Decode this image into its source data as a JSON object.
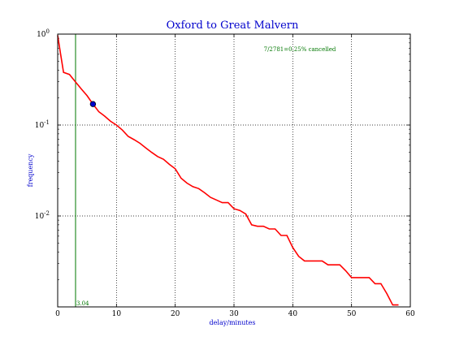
{
  "chart_data": {
    "type": "line",
    "title": "Oxford to Great Malvern",
    "xlabel": "delay/minutes",
    "ylabel": "frequency",
    "xlim": [
      0,
      60
    ],
    "ylim": [
      0.001,
      1.0
    ],
    "yscale": "log",
    "grid": true,
    "x_ticks": [
      "0",
      "10",
      "20",
      "30",
      "40",
      "50",
      "60"
    ],
    "y_ticks": [
      {
        "base": "10",
        "exp": "-2",
        "value": 0.01
      },
      {
        "base": "10",
        "exp": "-1",
        "value": 0.1
      },
      {
        "base": "10",
        "exp": "0",
        "value": 1.0
      }
    ],
    "series": [
      {
        "color": "#ff0000",
        "points": [
          [
            0,
            0.97
          ],
          [
            0.5,
            0.6
          ],
          [
            1,
            0.38
          ],
          [
            2,
            0.36
          ],
          [
            3,
            0.3
          ],
          [
            4,
            0.25
          ],
          [
            5,
            0.21
          ],
          [
            6,
            0.17
          ],
          [
            7,
            0.14
          ],
          [
            8,
            0.125
          ],
          [
            9,
            0.11
          ],
          [
            10,
            0.1
          ],
          [
            11,
            0.088
          ],
          [
            12,
            0.075
          ],
          [
            13,
            0.069
          ],
          [
            14,
            0.063
          ],
          [
            15,
            0.056
          ],
          [
            16,
            0.05
          ],
          [
            17,
            0.045
          ],
          [
            18,
            0.042
          ],
          [
            19,
            0.037
          ],
          [
            20,
            0.033
          ],
          [
            21,
            0.026
          ],
          [
            22,
            0.023
          ],
          [
            23,
            0.021
          ],
          [
            24,
            0.02
          ],
          [
            25,
            0.018
          ],
          [
            26,
            0.016
          ],
          [
            27,
            0.015
          ],
          [
            28,
            0.014
          ],
          [
            29,
            0.014
          ],
          [
            30,
            0.012
          ],
          [
            31,
            0.0115
          ],
          [
            32,
            0.0105
          ],
          [
            33,
            0.008
          ],
          [
            34,
            0.0077
          ],
          [
            35,
            0.0077
          ],
          [
            36,
            0.0072
          ],
          [
            37,
            0.0072
          ],
          [
            38,
            0.0061
          ],
          [
            39,
            0.0061
          ],
          [
            40,
            0.0045
          ],
          [
            41,
            0.0036
          ],
          [
            42,
            0.0032
          ],
          [
            43,
            0.0032
          ],
          [
            44,
            0.0032
          ],
          [
            45,
            0.0032
          ],
          [
            46,
            0.0029
          ],
          [
            47,
            0.0029
          ],
          [
            48,
            0.0029
          ],
          [
            49,
            0.0025
          ],
          [
            50,
            0.0021
          ],
          [
            51,
            0.0021
          ],
          [
            52,
            0.0021
          ],
          [
            53,
            0.0021
          ],
          [
            54,
            0.0018
          ],
          [
            55,
            0.0018
          ],
          [
            56,
            0.0014
          ],
          [
            57,
            0.00105
          ],
          [
            58,
            0.00105
          ]
        ]
      }
    ],
    "marker": {
      "x": 6,
      "y": 0.17,
      "color": "#0000cc"
    },
    "vline": {
      "x": 3.04,
      "label": "3.04",
      "color": "#007700"
    },
    "annotation": "7/2781=0.25% cancelled",
    "annotation_color": "#007700",
    "title_color": "#0000cc",
    "label_color": "#0000cc"
  }
}
